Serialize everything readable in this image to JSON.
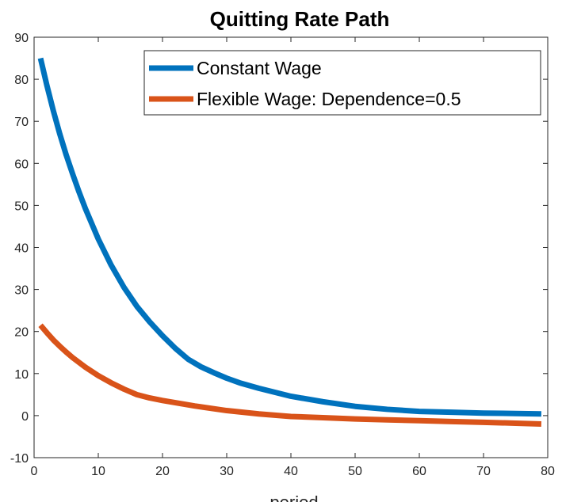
{
  "chart_data": {
    "type": "line",
    "title": "Quitting Rate Path",
    "xlabel": "period",
    "ylabel": "",
    "xlim": [
      0,
      80
    ],
    "ylim": [
      -10,
      90
    ],
    "xticks": [
      0,
      10,
      20,
      30,
      40,
      50,
      60,
      70,
      80
    ],
    "yticks": [
      -10,
      0,
      10,
      20,
      30,
      40,
      50,
      60,
      70,
      80,
      90
    ],
    "grid": false,
    "legend_position": "top-right",
    "series": [
      {
        "name": "Constant Wage",
        "color": "#0072BD",
        "x": [
          1,
          2,
          3,
          4,
          5,
          6,
          7,
          8,
          10,
          12,
          14,
          16,
          18,
          20,
          22,
          24,
          26,
          28,
          30,
          32,
          35,
          40,
          45,
          50,
          55,
          60,
          65,
          70,
          75,
          79
        ],
        "y": [
          85,
          78.5,
          72.5,
          67,
          62,
          57.5,
          53.2,
          49.2,
          42,
          35.8,
          30.5,
          26,
          22.3,
          19,
          16,
          13.4,
          11.6,
          10.2,
          8.9,
          7.8,
          6.5,
          4.6,
          3.3,
          2.2,
          1.5,
          1.0,
          0.8,
          0.6,
          0.5,
          0.4
        ]
      },
      {
        "name": "Flexible Wage: Dependence=0.5",
        "color": "#D95319",
        "x": [
          1,
          2,
          3,
          4,
          5,
          6,
          8,
          10,
          12,
          14,
          16,
          18,
          20,
          25,
          30,
          35,
          40,
          45,
          50,
          55,
          60,
          65,
          70,
          75,
          79
        ],
        "y": [
          21.5,
          19.7,
          18,
          16.5,
          15.1,
          13.8,
          11.5,
          9.5,
          7.8,
          6.3,
          5.0,
          4.2,
          3.6,
          2.3,
          1.2,
          0.4,
          -0.2,
          -0.5,
          -0.8,
          -1.0,
          -1.2,
          -1.4,
          -1.6,
          -1.8,
          -2.0
        ]
      }
    ]
  }
}
